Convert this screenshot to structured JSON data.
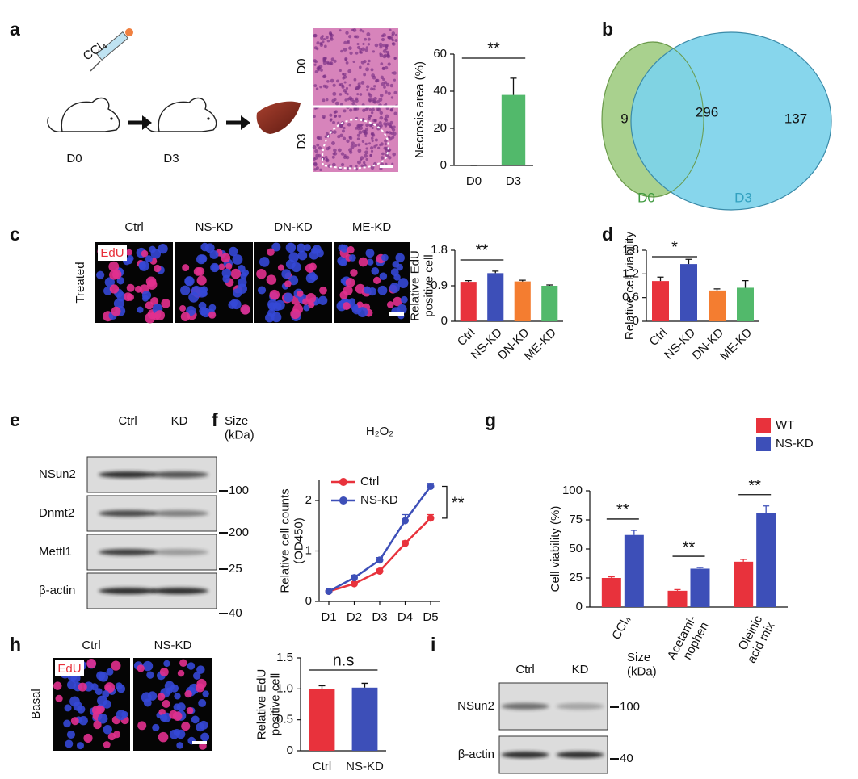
{
  "panel_labels": [
    "a",
    "b",
    "c",
    "d",
    "e",
    "f",
    "g",
    "h",
    "i"
  ],
  "schematic_a": {
    "drug": "CCl₄",
    "days": [
      "D0",
      "D3"
    ]
  },
  "histology_a": {
    "rows": [
      "D0",
      "D3"
    ]
  },
  "venn": {
    "sets": [
      {
        "name": "D0",
        "color": "#a9d18e",
        "text_color": "#3f9a3f"
      },
      {
        "name": "D3",
        "color": "#7dd3ea",
        "text_color": "#33a1c0"
      }
    ],
    "counts": [
      9,
      296,
      137
    ]
  },
  "edu_images": [
    {
      "columns": [
        "Ctrl",
        "NS-KD",
        "DN-KD",
        "ME-KD"
      ],
      "row": "Treated",
      "stain": "EdU"
    },
    {
      "columns": [
        "Ctrl",
        "NS-KD"
      ],
      "row": "Basal",
      "stain": "EdU"
    }
  ],
  "blots": [
    {
      "lanes": [
        "Ctrl",
        "KD"
      ],
      "size_label": "Size\n(kDa)",
      "rows": [
        {
          "name": "NSun2",
          "marker": "100"
        },
        {
          "name": "Dnmt2",
          "marker": "200"
        },
        {
          "name": "Mettl1",
          "marker": "25"
        },
        {
          "name": "β-actin",
          "marker": "40"
        }
      ]
    },
    {
      "lanes": [
        "Ctrl",
        "KD"
      ],
      "size_label": "Size\n(kDa)",
      "rows": [
        {
          "name": "NSun2",
          "marker": "100"
        },
        {
          "name": "β-actin",
          "marker": "40"
        }
      ]
    }
  ],
  "chart_data": [
    {
      "type": "bar",
      "ylabel": "Necrosis area (%)",
      "categories": [
        "D0",
        "D3"
      ],
      "values": [
        0,
        38
      ],
      "errors": [
        0,
        9
      ],
      "colors": [
        "#52b96b",
        "#52b96b"
      ],
      "ylim": [
        0,
        60
      ],
      "yticks": [
        0,
        20,
        40,
        60
      ],
      "significance": "**"
    },
    {
      "type": "bar",
      "ylabel": "Relative EdU\npositive cell",
      "categories": [
        "Ctrl",
        "NS-KD",
        "DN-KD",
        "ME-KD"
      ],
      "values": [
        1.0,
        1.22,
        1.01,
        0.9
      ],
      "errors": [
        0.03,
        0.05,
        0.03,
        0.02
      ],
      "colors": [
        "#e8323c",
        "#3d4fb8",
        "#f47d30",
        "#52b96b"
      ],
      "ylim": [
        0,
        1.8
      ],
      "yticks": [
        0,
        0.9,
        1.8
      ],
      "significance": "**"
    },
    {
      "type": "bar",
      "ylabel": "Relative cell viability",
      "categories": [
        "Ctrl",
        "NS-KD",
        "DN-KD",
        "ME-KD"
      ],
      "values": [
        1.02,
        1.45,
        0.78,
        0.85
      ],
      "errors": [
        0.1,
        0.12,
        0.04,
        0.18
      ],
      "colors": [
        "#e8323c",
        "#3d4fb8",
        "#f47d30",
        "#52b96b"
      ],
      "ylim": [
        0,
        1.8
      ],
      "yticks": [
        0,
        0.6,
        1.2,
        1.8
      ],
      "significance": "*"
    },
    {
      "type": "line",
      "title": "H₂O₂",
      "ylabel": "Relative cell counts\n(OD450)",
      "categories": [
        "D1",
        "D2",
        "D3",
        "D4",
        "D5"
      ],
      "series": [
        {
          "name": "Ctrl",
          "color": "#e8323c",
          "values": [
            0.2,
            0.35,
            0.6,
            1.15,
            1.65
          ],
          "errors": [
            0.02,
            0.03,
            0.04,
            0.05,
            0.07
          ]
        },
        {
          "name": "NS-KD",
          "color": "#3d4fb8",
          "values": [
            0.2,
            0.47,
            0.82,
            1.6,
            2.28
          ],
          "errors": [
            0.02,
            0.05,
            0.05,
            0.12,
            0.06
          ]
        }
      ],
      "ylim": [
        0,
        2.4
      ],
      "yticks": [
        0,
        1,
        2
      ],
      "significance": "**",
      "legend": "top-left"
    },
    {
      "type": "bar",
      "ylabel": "Cell viability (%)",
      "categories": [
        "CCl₄",
        "Acetami-\nnophen",
        "Oleinic\nacid mix"
      ],
      "series": [
        {
          "name": "WT",
          "color": "#e8323c",
          "values": [
            25,
            14,
            39
          ],
          "errors": [
            1,
            1,
            2
          ]
        },
        {
          "name": "NS-KD",
          "color": "#3d4fb8",
          "values": [
            62,
            33,
            81
          ],
          "errors": [
            4,
            1,
            6
          ]
        }
      ],
      "ylim": [
        0,
        100
      ],
      "yticks": [
        0,
        25,
        50,
        75,
        100
      ],
      "significance": [
        "**",
        "**",
        "**"
      ],
      "legend": "top-right"
    },
    {
      "type": "bar",
      "ylabel": "Relative EdU\npositive cell",
      "categories": [
        "Ctrl",
        "NS-KD"
      ],
      "values": [
        1.0,
        1.02
      ],
      "errors": [
        0.05,
        0.07
      ],
      "colors": [
        "#e8323c",
        "#3d4fb8"
      ],
      "ylim": [
        0,
        1.5
      ],
      "yticks": [
        0,
        0.5,
        {
          "value": 1,
          "label": "1.0"
        },
        1.5
      ],
      "significance": "n.s"
    }
  ]
}
